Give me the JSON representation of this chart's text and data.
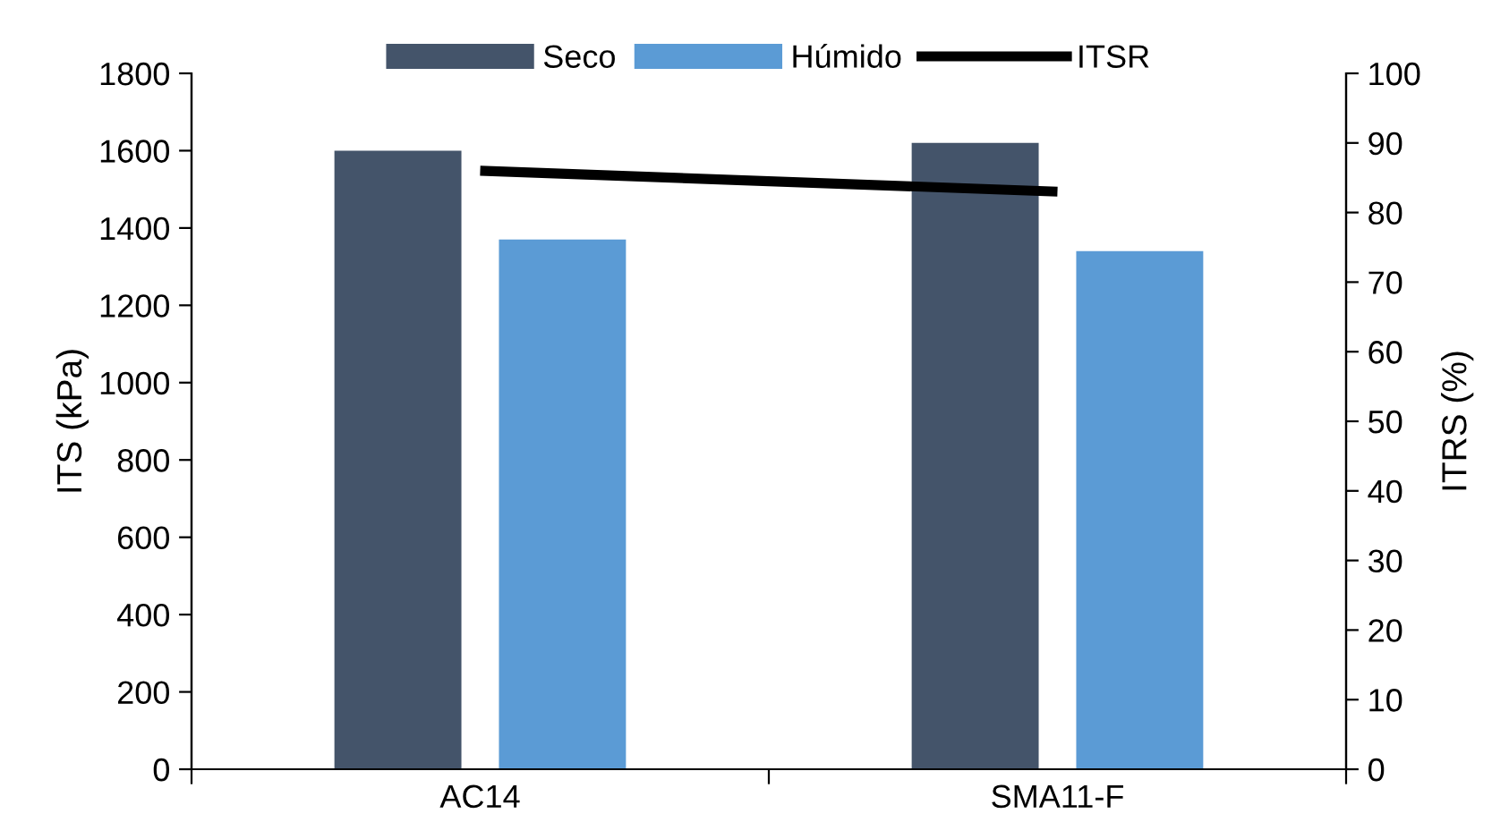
{
  "chart_data": {
    "type": "bar",
    "xlabel": null,
    "ylabel": "ITS (kPa)",
    "y2label": "ITRS (%)",
    "categories": [
      "AC14",
      "SMA11-F"
    ],
    "series": [
      {
        "name": "Seco",
        "color": "#44546a",
        "values": [
          1600,
          1620
        ]
      },
      {
        "name": "Húmido",
        "color": "#5b9bd5",
        "values": [
          1370,
          1340
        ]
      },
      {
        "name": "ITSR",
        "type": "line",
        "axis": "y2",
        "color": "#000000",
        "values": [
          86,
          83
        ],
        "marker": "none",
        "line_style": "solid"
      }
    ],
    "ylim": [
      0,
      1800
    ],
    "yticks": [
      0,
      200,
      400,
      600,
      800,
      1000,
      1200,
      1400,
      1600,
      1800
    ],
    "y2lim": [
      0,
      100
    ],
    "y2ticks": [
      0,
      10,
      20,
      30,
      40,
      50,
      60,
      70,
      80,
      90,
      100
    ],
    "grid": false,
    "legend": "top"
  }
}
